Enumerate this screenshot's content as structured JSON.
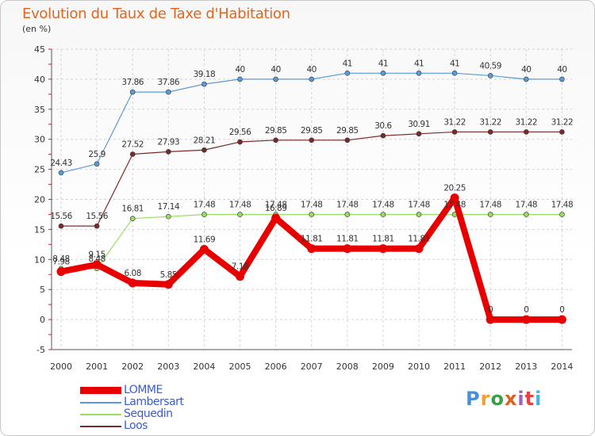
{
  "title": "Evolution du Taux de Taxe d'Habitation",
  "unit": "(en %)",
  "logo": {
    "text": "Proxiti",
    "colors": [
      "#4a90d9",
      "#f0a030",
      "#3aa04a",
      "#e06020",
      "#9c5fbf",
      "#e84040",
      "#4ab0e0"
    ]
  },
  "chart_data": {
    "type": "line",
    "title": "Evolution du Taux de Taxe d'Habitation",
    "ylabel": "(en %)",
    "ylim": [
      -5,
      45
    ],
    "yticks": [
      -5,
      0,
      5,
      10,
      15,
      20,
      25,
      30,
      35,
      40,
      45
    ],
    "grid": true,
    "x": [
      "2000",
      "2001",
      "2002",
      "2003",
      "2004",
      "2005",
      "2006",
      "2007",
      "2008",
      "2009",
      "2010",
      "2011",
      "2012",
      "2013",
      "2014"
    ],
    "series": [
      {
        "name": "LOMME",
        "color": "#e80000",
        "values": [
          7.98,
          9.15,
          6.08,
          5.85,
          11.69,
          7.18,
          16.89,
          11.81,
          11.81,
          11.81,
          11.81,
          20.25,
          0,
          0,
          0
        ],
        "labels": [
          "7.98",
          "9.15",
          "6.08",
          "5.85",
          "11.69",
          "7.18",
          "16.89",
          "11.81",
          "11.81",
          "11.81",
          "11.81",
          "20.25",
          "0",
          "0",
          "0"
        ]
      },
      {
        "name": "Lambersart",
        "color": "#5b9bd5",
        "values": [
          24.43,
          25.9,
          37.86,
          37.86,
          39.18,
          40,
          40,
          40,
          41,
          41,
          41,
          41,
          40.59,
          40,
          40
        ],
        "labels": [
          "24.43",
          "25.9",
          "37.86",
          "37.86",
          "39.18",
          "40",
          "40",
          "40",
          "41",
          "41",
          "41",
          "41",
          "40.59",
          "40",
          "40"
        ]
      },
      {
        "name": "Sequedin",
        "color": "#99dd66",
        "values": [
          8.48,
          8.48,
          16.81,
          17.14,
          17.48,
          17.48,
          17.48,
          17.48,
          17.48,
          17.48,
          17.48,
          17.48,
          17.48,
          17.48,
          17.48
        ],
        "labels": [
          "8.48",
          "8.48",
          "16.81",
          "17.14",
          "17.48",
          "17.48",
          "17.48",
          "17.48",
          "17.48",
          "17.48",
          "17.48",
          "17.48",
          "17.48",
          "17.48",
          "17.48"
        ]
      },
      {
        "name": "Loos",
        "color": "#7a2a2a",
        "values": [
          15.56,
          15.56,
          27.52,
          27.93,
          28.21,
          29.56,
          29.85,
          29.85,
          29.85,
          30.6,
          30.91,
          31.22,
          31.22,
          31.22,
          31.22
        ],
        "labels": [
          "15.56",
          "15.56",
          "27.52",
          "27.93",
          "28.21",
          "29.56",
          "29.85",
          "29.85",
          "29.85",
          "30.6",
          "30.91",
          "31.22",
          "31.22",
          "31.22",
          "31.22"
        ]
      }
    ],
    "legend": [
      "LOMME",
      "Lambersart",
      "Sequedin",
      "Loos"
    ],
    "legend_position": "bottom-left"
  }
}
